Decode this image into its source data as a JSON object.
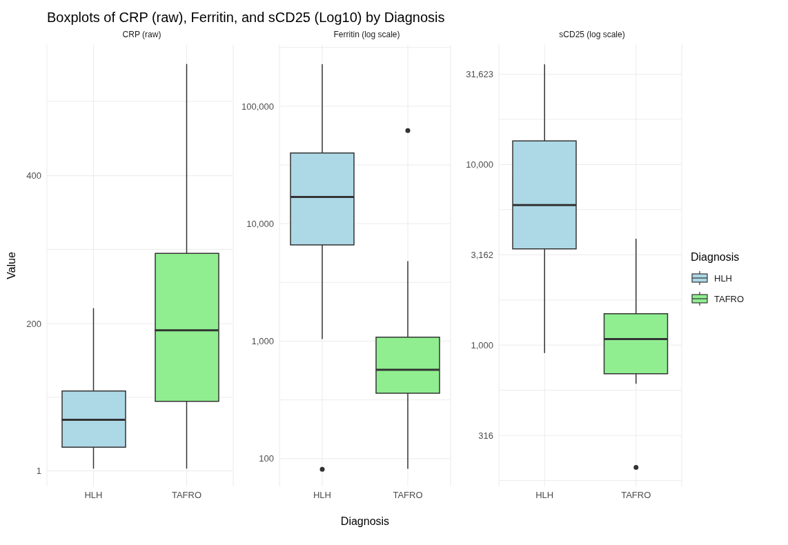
{
  "chart_data": [
    {
      "type": "box",
      "title": "Boxplots of CRP (raw), Ferritin, and sCD25 (Log10) by Diagnosis",
      "subtitle": "CRP (raw)",
      "ylabel": "Value",
      "categories": [
        "HLH",
        "TAFRO"
      ],
      "series": [
        {
          "color": "#add8e6",
          "boxes": [
            {
              "low": 4,
              "q1": 33,
              "median": 70,
              "q3": 109,
              "high": 221
            },
            null
          ]
        },
        {
          "color": "#90ee90",
          "boxes": [
            null,
            {
              "low": 4,
              "q1": 95,
              "median": 191,
              "q3": 295,
              "high": 551
            }
          ]
        }
      ],
      "ylim": [
        -20,
        577
      ],
      "yticks": [
        1,
        {
          "value": 100.5,
          "label": null
        },
        200,
        {
          "value": 300.5,
          "label": null
        },
        400,
        {
          "value": 500.5,
          "label": null
        }
      ],
      "grid": true
    },
    {
      "type": "box",
      "subtitle": "Ferritin (log scale)",
      "xlabel": "Diagnosis",
      "categories": [
        "HLH",
        "TAFRO"
      ],
      "series": [
        {
          "color": "#add8e6",
          "boxes": [
            {
              "low": 1040,
              "q1": 6600,
              "median": 16900,
              "q3": 40000,
              "high": 228000,
              "outliers": [
                81
              ]
            },
            null
          ]
        },
        {
          "color": "#90ee90",
          "boxes": [
            null,
            {
              "low": 82,
              "q1": 360,
              "median": 570,
              "q3": 1080,
              "high": 4800,
              "outliers": [
                62000
              ]
            }
          ]
        }
      ],
      "log": true,
      "ylim": [
        58,
        333000
      ],
      "yticks": [
        {
          "value": 100,
          "label": "100"
        },
        {
          "value": 316,
          "label": null
        },
        {
          "value": 1000,
          "label": "1,000"
        },
        {
          "value": 3162,
          "label": null
        },
        {
          "value": 10000,
          "label": "10,000"
        },
        {
          "value": 31623,
          "label": null
        },
        {
          "value": 100000,
          "label": "100,000"
        },
        {
          "value": 316228,
          "label": null
        }
      ],
      "grid": true
    },
    {
      "type": "box",
      "subtitle": "sCD25 (log scale)",
      "legend_title": "Diagnosis",
      "legend": "right",
      "categories": [
        "HLH",
        "TAFRO"
      ],
      "series": [
        {
          "name": "HLH",
          "color": "#add8e6",
          "boxes": [
            {
              "low": 903,
              "q1": 3410,
              "median": 5960,
              "q3": 13500,
              "high": 35900
            },
            null
          ]
        },
        {
          "name": "TAFRO",
          "color": "#90ee90",
          "boxes": [
            null,
            {
              "low": 611,
              "q1": 694,
              "median": 1080,
              "q3": 1490,
              "high": 3880,
              "outliers": [
                210
              ]
            }
          ]
        }
      ],
      "log": true,
      "ylim": [
        165,
        46000
      ],
      "yticks": [
        {
          "value": 178,
          "label": null
        },
        {
          "value": 316,
          "label": "316"
        },
        {
          "value": 562,
          "label": null
        },
        {
          "value": 1000,
          "label": "1,000"
        },
        {
          "value": 1778,
          "label": null
        },
        {
          "value": 3162,
          "label": "3,162"
        },
        {
          "value": 5623,
          "label": null
        },
        {
          "value": 10000,
          "label": "10,000"
        },
        {
          "value": 17783,
          "label": null
        },
        {
          "value": 31623,
          "label": "31,623"
        }
      ],
      "grid": true
    }
  ]
}
